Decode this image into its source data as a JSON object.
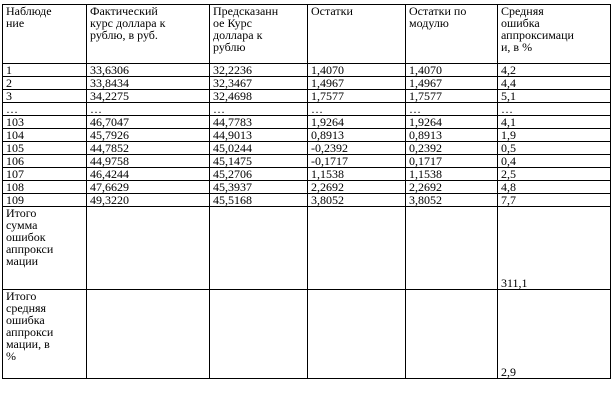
{
  "table": {
    "header": [
      "Наблюде\nние",
      "Фактический\nкурс доллара к\nрублю, в руб.",
      "Предсказанн\nое Курс\nдоллара к\nрублю",
      "Остатки",
      "Остатки по\nмодулю",
      "Средняя\nошибка\nаппроксимаци\nи, в %"
    ],
    "rows": [
      [
        "1",
        "33,6306",
        "32,2236",
        "1,4070",
        "1,4070",
        "4,2"
      ],
      [
        "2",
        "33,8434",
        "32,3467",
        "1,4967",
        "1,4967",
        "4,4"
      ],
      [
        "3",
        "34,2275",
        "32,4698",
        "1,7577",
        "1,7577",
        "5,1"
      ],
      [
        "…",
        "…",
        "…",
        "…",
        "…",
        "…"
      ],
      [
        "103",
        "46,7047",
        "44,7783",
        "1,9264",
        "1,9264",
        "4,1"
      ],
      [
        "104",
        "45,7926",
        "44,9013",
        "0,8913",
        "0,8913",
        "1,9"
      ],
      [
        "105",
        "44,7852",
        "45,0244",
        "-0,2392",
        "0,2392",
        "0,5"
      ],
      [
        "106",
        "44,9758",
        "45,1475",
        "-0,1717",
        "0,1717",
        "0,4"
      ],
      [
        "107",
        "46,4244",
        "45,2706",
        "1,1538",
        "1,1538",
        "2,5"
      ],
      [
        "108",
        "47,6629",
        "45,3937",
        "2,2692",
        "2,2692",
        "4,8"
      ],
      [
        "109",
        "49,3220",
        "45,5168",
        "3,8052",
        "3,8052",
        "7,7"
      ]
    ],
    "totals": [
      [
        "Итого\nсумма\nошибок\nаппрокси\nмации",
        null,
        null,
        null,
        null,
        "311,1"
      ],
      [
        "Итого\nсредняя\nошибка\nаппрокси\nмации, в\n%",
        null,
        null,
        null,
        null,
        "2,9"
      ]
    ]
  }
}
